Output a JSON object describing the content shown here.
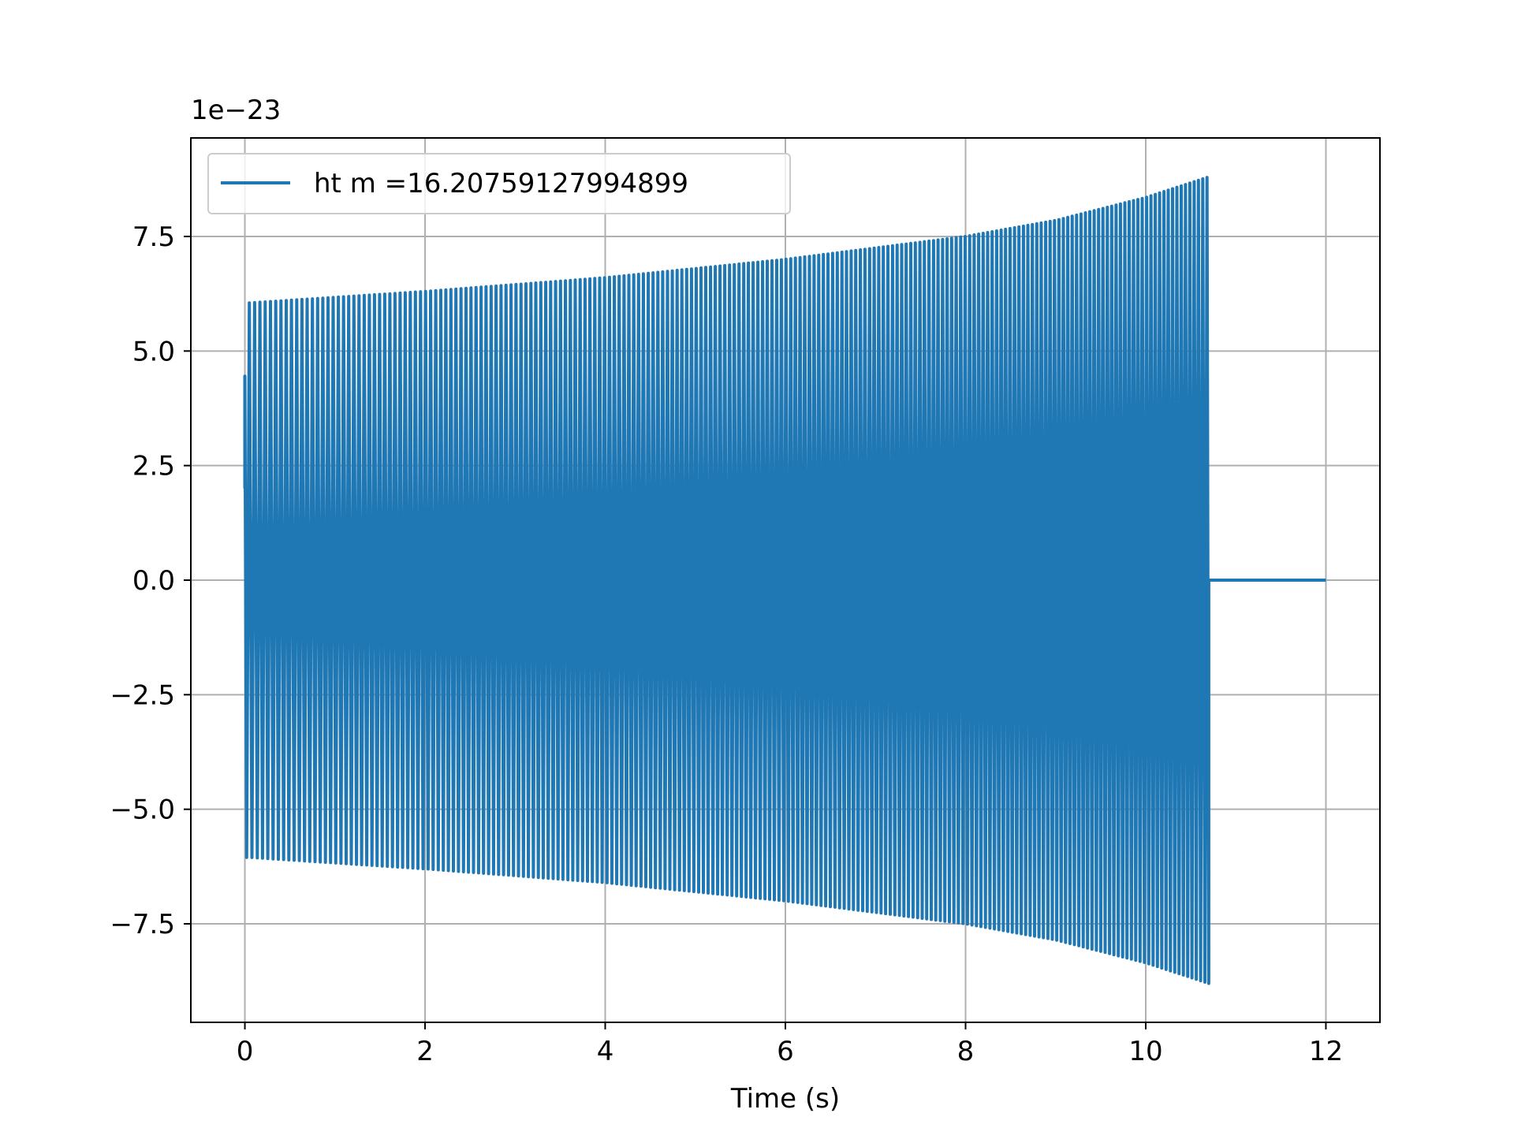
{
  "chart_data": {
    "type": "line",
    "title": "",
    "xlabel": "Time (s)",
    "ylabel": "",
    "y_offset_label": "1e−23",
    "xlim": [
      -0.6,
      12.6
    ],
    "ylim": [
      -9.65,
      9.65
    ],
    "x_ticks": [
      0,
      2,
      4,
      6,
      8,
      10,
      12
    ],
    "x_tick_labels": [
      "0",
      "2",
      "4",
      "6",
      "8",
      "10",
      "12"
    ],
    "y_ticks": [
      7.5,
      5.0,
      2.5,
      0.0,
      -2.5,
      -5.0,
      -7.5
    ],
    "y_tick_labels": [
      "7.5",
      "5.0",
      "2.5",
      "0.0",
      "−2.5",
      "−5.0",
      "−7.5"
    ],
    "grid": true,
    "legend_position": "upper-left",
    "series": [
      {
        "name": "ht m =16.20759127994899",
        "color": "#1f77b4",
        "signal": {
          "kind": "chirp-oscillation",
          "t_start": 0.0,
          "t_merger": 10.7,
          "t_end": 12.0,
          "initial_value": 2.0,
          "initial_peak": 4.45,
          "envelope": [
            {
              "t": 0.05,
              "amp": 6.05
            },
            {
              "t": 2.0,
              "amp": 6.3
            },
            {
              "t": 4.0,
              "amp": 6.6
            },
            {
              "t": 6.0,
              "amp": 7.0
            },
            {
              "t": 8.0,
              "amp": 7.5
            },
            {
              "t": 9.0,
              "amp": 7.85
            },
            {
              "t": 10.0,
              "amp": 8.35
            },
            {
              "t": 10.7,
              "amp": 8.8
            }
          ],
          "cycles_per_second_start": 17.0,
          "cycles_per_second_end": 21.0,
          "post_merger_value": 0.0
        }
      }
    ]
  }
}
